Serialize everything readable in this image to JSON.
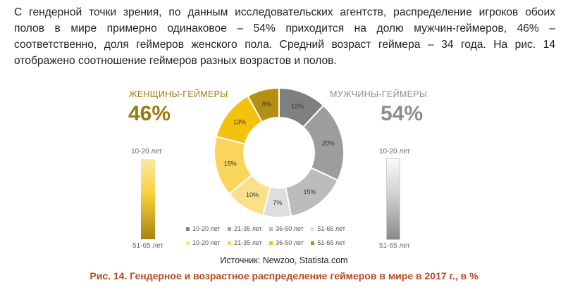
{
  "paragraph": {
    "lines": [
      "С гендерной точки зрения, по данным исследовательских агентств, распределение игроков обоих",
      "полов в мире примерно одинаковое – 54% приходится на долю мужчин-геймеров, 46% –",
      "соответственно, доля геймеров женского пола. Средний возраст геймера – 34 года. На рис. 14",
      "отображено соотношение геймеров разных возрастов и полов."
    ]
  },
  "female": {
    "label": "ЖЕНЩИНЫ-ГЕЙМЕРЫ",
    "percent": "46%",
    "bar_top": "10-20 лет",
    "bar_bottom": "51-65 лет",
    "color": "#9b7a12"
  },
  "male": {
    "label": "МУЖЧИНЫ-ГЕЙМЕРЫ",
    "percent": "54%",
    "bar_top": "10-20 лет",
    "bar_bottom": "51-65 лет",
    "color": "#8d8d8d"
  },
  "chart_data": {
    "type": "pie",
    "title": "Гендерное и возрастное распределение геймеров в мире в 2017 г., в %",
    "donut": true,
    "slices": [
      {
        "group": "male",
        "age": "10-20 лет",
        "value": 12,
        "label": "12%",
        "color": "#7f7f7f"
      },
      {
        "group": "male",
        "age": "21-35 лет",
        "value": 20,
        "label": "20%",
        "color": "#9d9d9d"
      },
      {
        "group": "male",
        "age": "36-50 лет",
        "value": 15,
        "label": "15%",
        "color": "#bcbcbc"
      },
      {
        "group": "male",
        "age": "51-65 лет",
        "value": 7,
        "label": "7%",
        "color": "#dedede"
      },
      {
        "group": "female",
        "age": "10-20 лет",
        "value": 10,
        "label": "10%",
        "color": "#fbe08c"
      },
      {
        "group": "female",
        "age": "21-35 лет",
        "value": 15,
        "label": "15%",
        "color": "#fad55c"
      },
      {
        "group": "female",
        "age": "36-50 лет",
        "value": 13,
        "label": "13%",
        "color": "#f4c20d"
      },
      {
        "group": "female",
        "age": "51-65 лет",
        "value": 8,
        "label": "8%",
        "color": "#b58f12"
      }
    ]
  },
  "legend": {
    "male": [
      {
        "label": "10-20 лет",
        "color": "#7f7f7f"
      },
      {
        "label": "21-35 лет",
        "color": "#9d9d9d"
      },
      {
        "label": "36-50 лет",
        "color": "#bcbcbc"
      },
      {
        "label": "51-65 лет",
        "color": "#dedede"
      }
    ],
    "female": [
      {
        "label": "10-20 лет",
        "color": "#fbe08c"
      },
      {
        "label": "21-35 лет",
        "color": "#fad55c"
      },
      {
        "label": "36-50 лет",
        "color": "#f4c20d"
      },
      {
        "label": "51-65 лет",
        "color": "#b58f12"
      }
    ]
  },
  "source": "Источник: Newzoo, Statista.com",
  "caption": "Рис. 14. Гендерное и возрастное распределение геймеров в мире в 2017 г., в %"
}
